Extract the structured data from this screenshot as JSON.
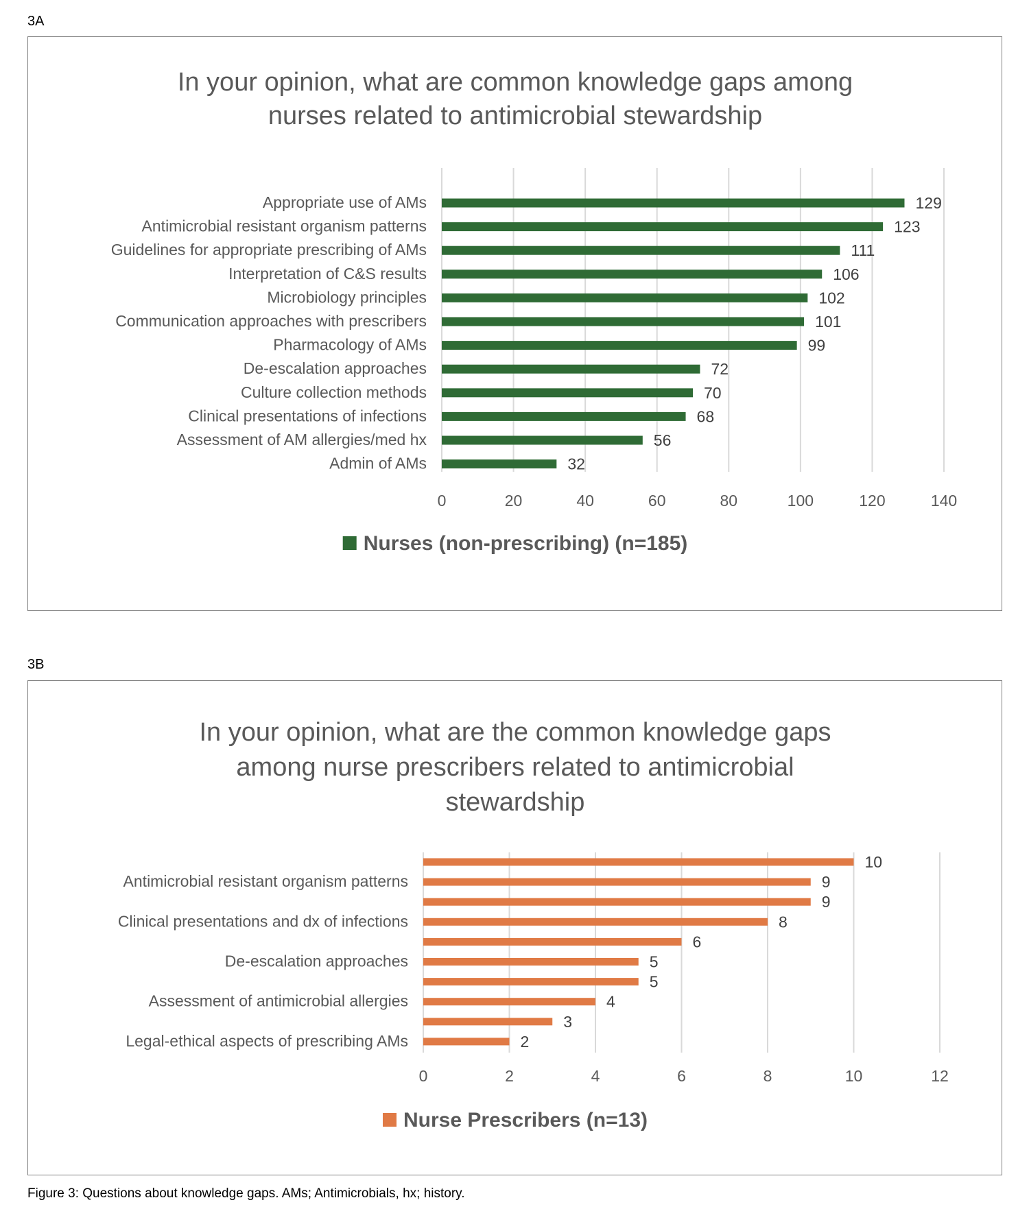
{
  "figure_caption": "Figure 3: Questions about knowledge gaps. AMs; Antimicrobials, hx; history.",
  "chart_data": [
    {
      "panel_label": "3A",
      "type": "bar",
      "orientation": "horizontal",
      "title": [
        "In your opinion, what are common knowledge gaps among",
        "nurses related to antimicrobial stewardship"
      ],
      "categories": [
        "Appropriate use of AMs",
        "Antimicrobial resistant organism patterns",
        "Guidelines for appropriate prescribing of AMs",
        "Interpretation of C&S results",
        "Microbiology principles",
        "Communication approaches with prescribers",
        "Pharmacology of AMs",
        "De-escalation approaches",
        "Culture collection methods",
        "Clinical presentations of infections",
        "Assessment of AM allergies/med hx",
        "Admin of AMs"
      ],
      "series": [
        {
          "name": "Nurses (non-prescribing) (n=185)",
          "values": [
            129,
            123,
            111,
            106,
            102,
            101,
            99,
            72,
            70,
            68,
            56,
            32
          ],
          "color": "#2f6b35"
        }
      ],
      "xlim": [
        0,
        140
      ],
      "xticks": [
        0,
        20,
        40,
        60,
        80,
        100,
        120,
        140
      ],
      "grid": true,
      "data_labels": true,
      "legend_position": "bottom"
    },
    {
      "panel_label": "3B",
      "type": "bar",
      "orientation": "horizontal",
      "title": [
        "In your opinion, what are the common knowledge gaps",
        "among nurse prescribers related to antimicrobial",
        "stewardship"
      ],
      "categories": [
        "",
        "Antimicrobial resistant organism patterns",
        "",
        "Clinical presentations and dx of infections",
        "",
        "De-escalation approaches",
        "",
        "Assessment of antimicrobial allergies",
        "",
        "Legal-ethical aspects of prescribing AMs"
      ],
      "series": [
        {
          "name": "Nurse Prescribers (n=13)",
          "values": [
            10,
            9,
            9,
            8,
            6,
            5,
            5,
            4,
            3,
            2
          ],
          "color": "#e07a45"
        }
      ],
      "xlim": [
        0,
        12
      ],
      "xticks": [
        0,
        2,
        4,
        6,
        8,
        10,
        12
      ],
      "grid": true,
      "data_labels": true,
      "legend_position": "bottom"
    }
  ]
}
